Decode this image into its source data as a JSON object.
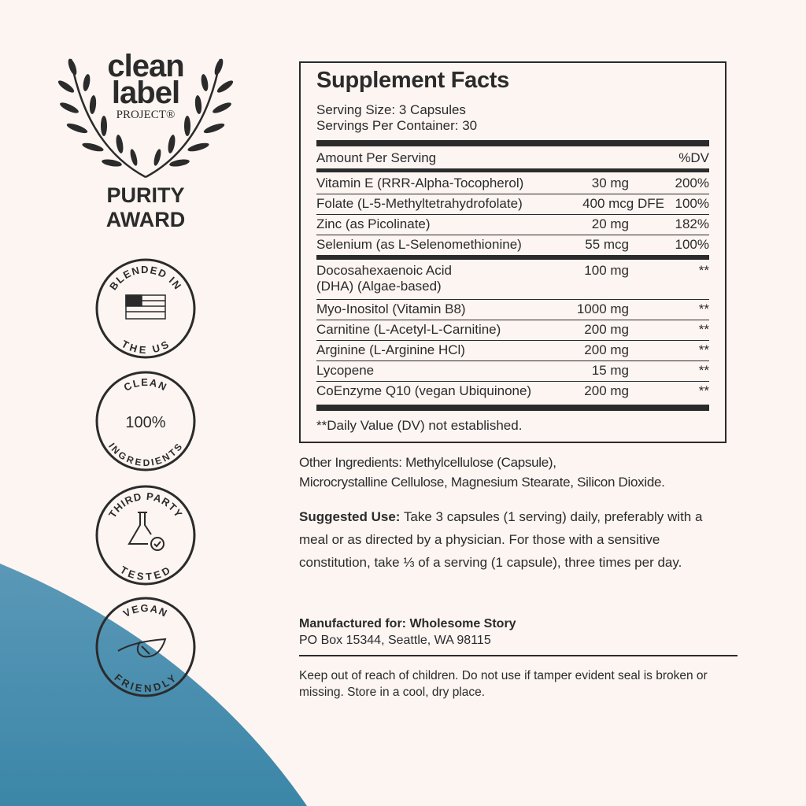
{
  "colors": {
    "background": "#fcf5f2",
    "text": "#2b2b2b",
    "accent_blue": "#4a8fb2"
  },
  "logo": {
    "line1": "clean",
    "line2": "label",
    "line3": "PROJECT®",
    "award1": "PURITY",
    "award2": "AWARD"
  },
  "badges": [
    {
      "top": "BLENDED IN",
      "bottom": "THE US",
      "icon": "us-flag-icon"
    },
    {
      "top": "CLEAN",
      "center": "100%",
      "bottom": "INGREDIENTS",
      "icon": ""
    },
    {
      "top": "THIRD PARTY",
      "bottom": "TESTED",
      "icon": "flask-check-icon"
    },
    {
      "top": "VEGAN",
      "bottom": "FRIENDLY",
      "icon": "leaf-icon"
    }
  ],
  "facts": {
    "title": "Supplement Facts",
    "serving_size": "Serving Size: 3 Capsules",
    "servings_per_container": "Servings Per Container: 30",
    "header_amount": "Amount Per Serving",
    "header_dv": "%DV",
    "group1": [
      {
        "name": "Vitamin E (RRR-Alpha-Tocopherol)",
        "amount": "30 mg",
        "dv": "200%"
      },
      {
        "name": "Folate (L-5-Methyltetrahydrofolate)",
        "amount": "400 mcg DFE",
        "dv": "100%"
      },
      {
        "name": "Zinc (as Picolinate)",
        "amount": "20 mg",
        "dv": "182%"
      },
      {
        "name": "Selenium (as L-Selenomethionine)",
        "amount": "55 mcg",
        "dv": "100%"
      }
    ],
    "group2": [
      {
        "name": "Docosahexaenoic Acid",
        "name2": "(DHA) (Algae-based)",
        "amount": "100 mg",
        "dv": "**"
      },
      {
        "name": "Myo-Inositol (Vitamin B8)",
        "amount": "1000 mg",
        "dv": "**"
      },
      {
        "name": "Carnitine (L-Acetyl-L-Carnitine)",
        "amount": "200 mg",
        "dv": "**"
      },
      {
        "name": "Arginine (L-Arginine HCl)",
        "amount": "200 mg",
        "dv": "**"
      },
      {
        "name": "Lycopene",
        "amount": "15 mg",
        "dv": "**"
      },
      {
        "name": "CoEnzyme Q10 (vegan Ubiquinone)",
        "amount": "200 mg",
        "dv": "**"
      }
    ],
    "footnote": "**Daily Value (DV) not established."
  },
  "other_ingredients": {
    "line1": "Other Ingredients: Methylcellulose (Capsule),",
    "line2": "Microcrystalline Cellulose, Magnesium Stearate, Silicon Dioxide."
  },
  "suggested_use": {
    "label": "Suggested Use:",
    "text": " Take 3 capsules (1 serving) daily, preferably with a meal or as directed by a physician. For those with a sensitive constitution, take ⅓ of a serving (1 capsule), three times per day."
  },
  "manufacturer": {
    "label": "Manufactured for: Wholesome Story",
    "address": "PO Box 15344, Seattle, WA 98115"
  },
  "warning": "Keep out of reach of children. Do not use if tamper evident seal is broken or missing. Store in a cool, dry place."
}
